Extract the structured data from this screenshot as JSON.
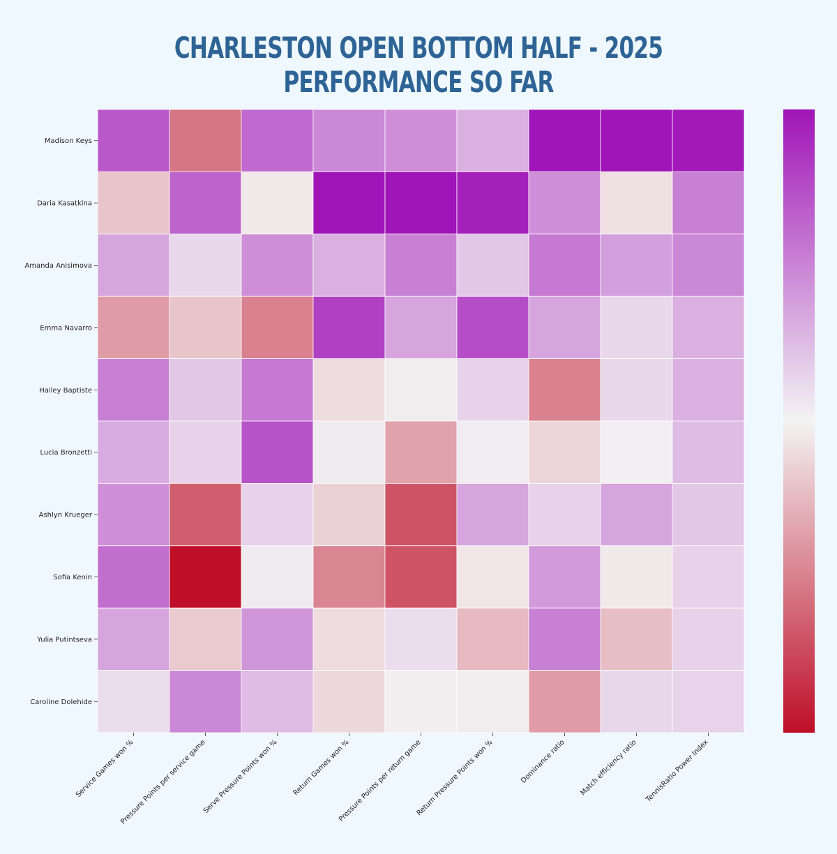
{
  "chart_data": {
    "type": "heatmap",
    "title": "CHARLESTON OPEN BOTTOM HALF - 2025 PERFORMANCE SO FAR",
    "rows": [
      "Madison Keys",
      "Daria Kasatkina",
      "Amanda Anisimova",
      "Emma Navarro",
      "Hailey Baptiste",
      "Lucia Bronzetti",
      "Ashlyn Krueger",
      "Sofia Kenin",
      "Yulia Putintseva",
      "Caroline Dolehide"
    ],
    "columns": [
      "Service Games won %",
      "Pressure Points per service game",
      "Serve Pressure Points won %",
      "Return Games won %",
      "Pressure Points per return game",
      "Return Pressure Points won %",
      "Dominance ratio",
      "Match efficiency ratio",
      "TennisRatio Power Index"
    ],
    "values": [
      [
        0.7,
        -0.55,
        0.62,
        0.48,
        0.45,
        0.3,
        1.0,
        1.0,
        0.98
      ],
      [
        -0.2,
        0.65,
        -0.05,
        1.0,
        1.0,
        0.95,
        0.45,
        -0.08,
        0.52
      ],
      [
        0.35,
        0.12,
        0.45,
        0.3,
        0.52,
        0.2,
        0.55,
        0.38,
        0.48
      ],
      [
        -0.38,
        -0.2,
        -0.5,
        0.8,
        0.35,
        0.75,
        0.35,
        0.12,
        0.3
      ],
      [
        0.52,
        0.2,
        0.55,
        -0.1,
        -0.03,
        0.15,
        -0.5,
        0.12,
        0.3
      ],
      [
        0.32,
        0.15,
        0.72,
        0.04,
        -0.35,
        0.03,
        -0.13,
        0.02,
        0.25
      ],
      [
        0.45,
        -0.65,
        0.15,
        -0.15,
        -0.7,
        0.35,
        0.15,
        0.35,
        0.2
      ],
      [
        0.6,
        -1.0,
        0.04,
        -0.48,
        -0.7,
        -0.06,
        0.4,
        -0.04,
        0.15
      ],
      [
        0.35,
        -0.18,
        0.42,
        -0.1,
        0.1,
        -0.25,
        0.52,
        -0.23,
        0.15
      ],
      [
        0.1,
        0.48,
        0.25,
        -0.12,
        -0.02,
        -0.03,
        -0.38,
        0.13,
        0.14
      ]
    ],
    "colormap": {
      "low": "#be0e28",
      "mid": "#f3f3f3",
      "high": "#a015b7"
    },
    "vmin": -1,
    "vmax": 1,
    "colorbar": "right",
    "colorbar_ticks": false
  }
}
